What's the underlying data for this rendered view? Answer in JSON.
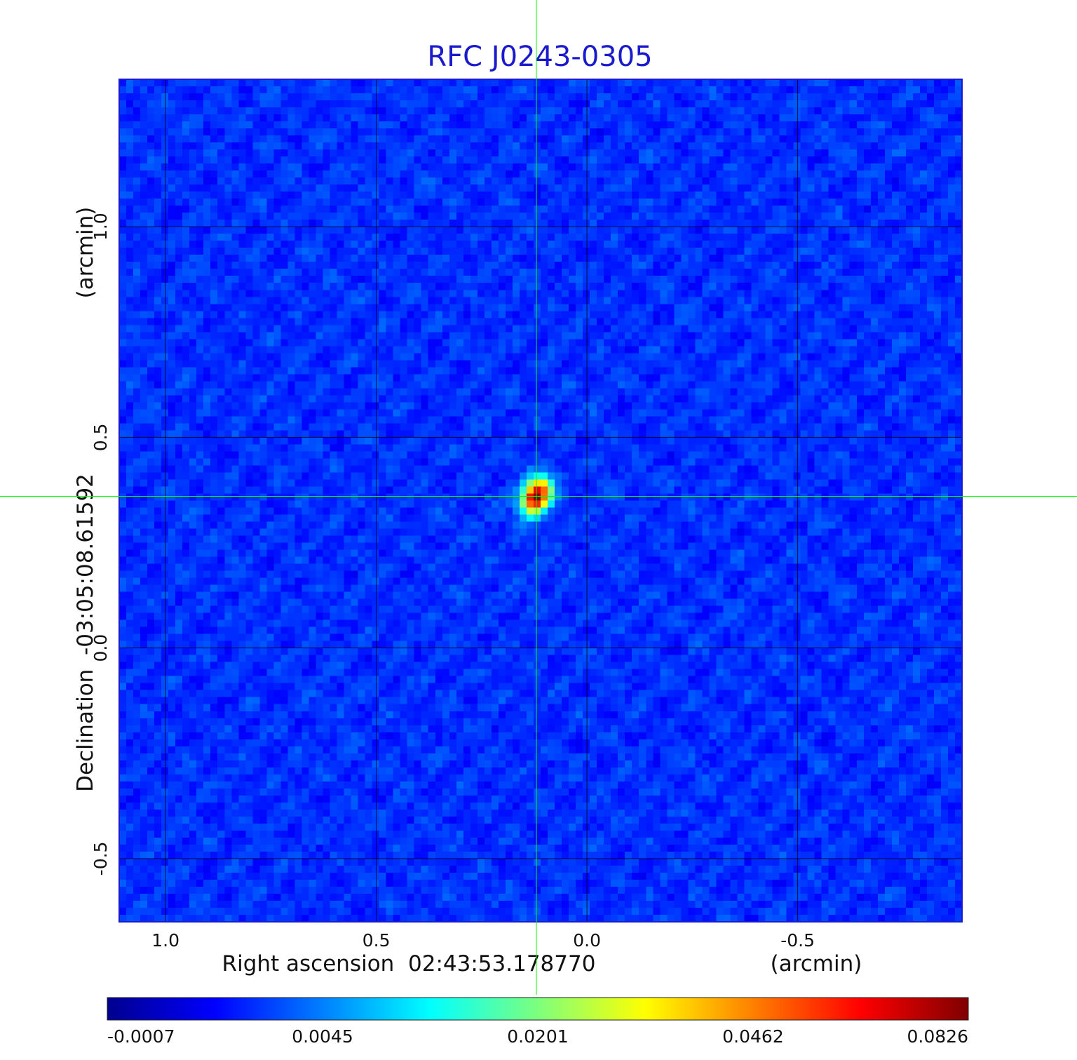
{
  "chart_data": {
    "type": "heatmap",
    "title": "RFC J0243-0305",
    "xlabel": "Right ascension  02:43:53.178770",
    "xunit": "(arcmin)",
    "ylabel": "Declination  -03:05:08.61592",
    "yunit": "(arcmin)",
    "x_ticks": [
      "1.0",
      "0.5",
      "0.0",
      "-0.5"
    ],
    "y_ticks": [
      "1.0",
      "0.5",
      "0.0",
      "-0.5"
    ],
    "x_tick_values": [
      1.0,
      0.5,
      0.0,
      -0.5
    ],
    "y_tick_values": [
      1.0,
      0.5,
      0.0,
      -0.5
    ],
    "xlim": [
      1.11,
      -0.89
    ],
    "ylim": [
      -0.65,
      1.35
    ],
    "grid": true,
    "colormap": "jet",
    "crosshair": {
      "x": 0.12,
      "y": 0.36,
      "color": "#00ff00"
    },
    "source_peak": {
      "x": 0.12,
      "y": 0.36,
      "value": 0.0826
    },
    "background_level": -0.0002,
    "colorbar": {
      "tick_labels": [
        "-0.0007",
        "0.0045",
        "0.0201",
        "0.0462",
        "0.0826"
      ],
      "tick_values": [
        -0.0007,
        0.0045,
        0.0201,
        0.0462,
        0.0826
      ],
      "scale": "nonlinear"
    }
  }
}
